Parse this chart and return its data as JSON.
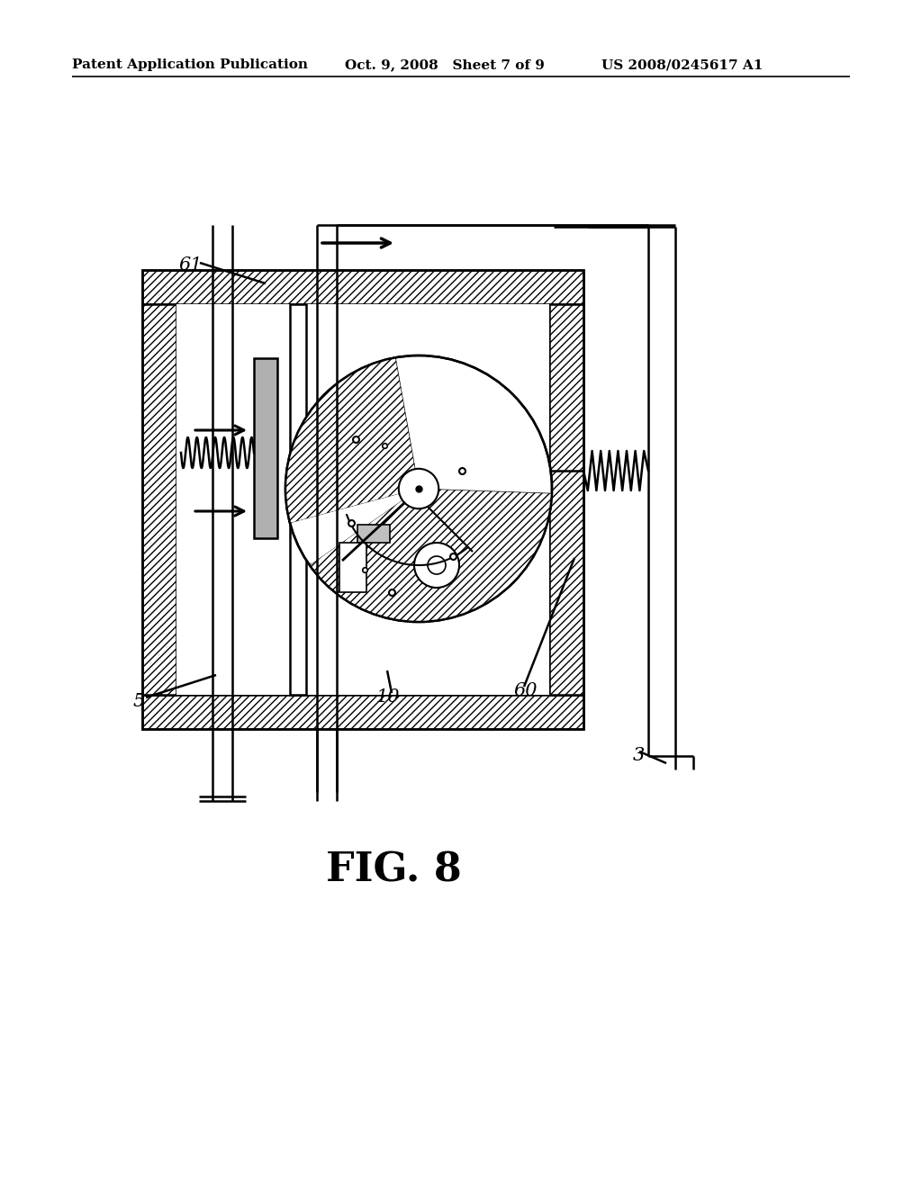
{
  "bg_color": "#ffffff",
  "header_left": "Patent Application Publication",
  "header_mid": "Oct. 9, 2008   Sheet 7 of 9",
  "header_right": "US 2008/0245617 A1",
  "fig_label": "FIG. 8"
}
